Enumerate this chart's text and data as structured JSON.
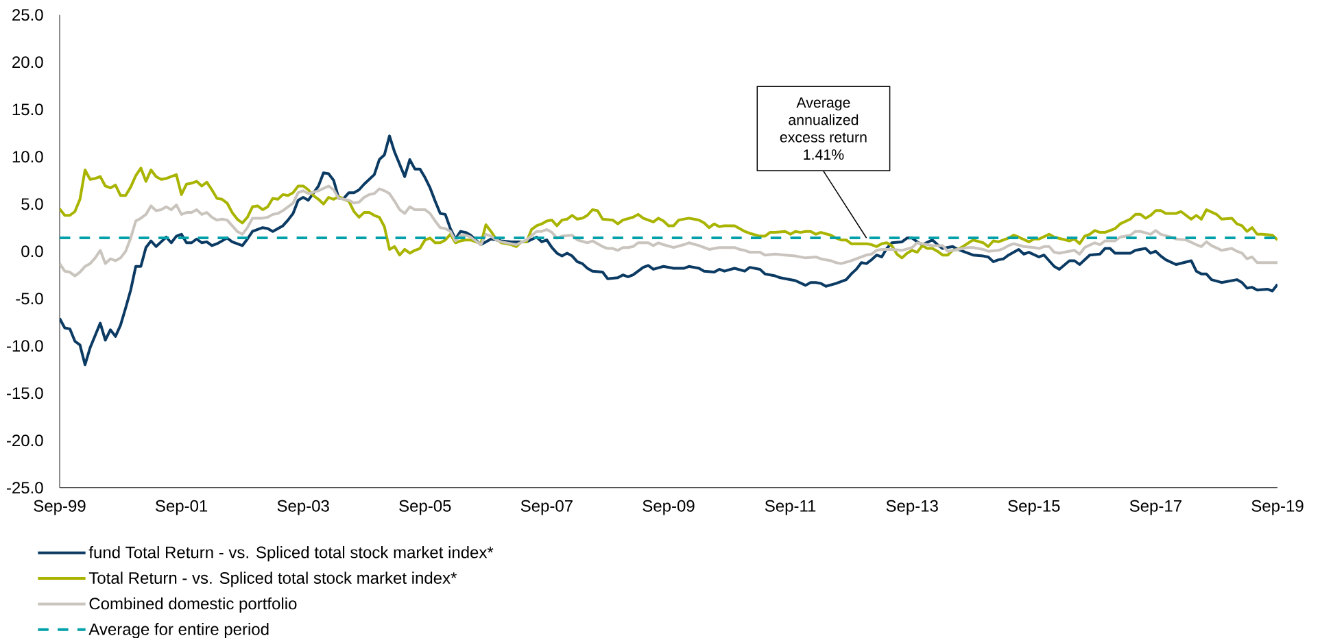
{
  "chart_data": {
    "type": "line",
    "xlim": [
      "1999-09",
      "2019-09"
    ],
    "ylim": [
      -25,
      25
    ],
    "xticks": [
      {
        "value": "1999-09",
        "label": "Sep-99"
      },
      {
        "value": "2001-09",
        "label": "Sep-01"
      },
      {
        "value": "2003-09",
        "label": "Sep-03"
      },
      {
        "value": "2005-09",
        "label": "Sep-05"
      },
      {
        "value": "2007-09",
        "label": "Sep-07"
      },
      {
        "value": "2009-09",
        "label": "Sep-09"
      },
      {
        "value": "2011-09",
        "label": "Sep-11"
      },
      {
        "value": "2013-09",
        "label": "Sep-13"
      },
      {
        "value": "2015-09",
        "label": "Sep-15"
      },
      {
        "value": "2017-09",
        "label": "Sep-17"
      },
      {
        "value": "2019-09",
        "label": "Sep-19"
      }
    ],
    "yticks": [
      {
        "value": -25,
        "label": "-25.0"
      },
      {
        "value": -20,
        "label": "-20.0"
      },
      {
        "value": -15,
        "label": "-15.0"
      },
      {
        "value": -10,
        "label": "-10.0"
      },
      {
        "value": -5,
        "label": "-5.0"
      },
      {
        "value": 0,
        "label": "0.0"
      },
      {
        "value": 5,
        "label": "5.0"
      },
      {
        "value": 10,
        "label": "10.0"
      },
      {
        "value": 15,
        "label": "15.0"
      },
      {
        "value": 20,
        "label": "20.0"
      },
      {
        "value": 25,
        "label": "25.0"
      }
    ],
    "legend": "bottom left",
    "series": [
      {
        "name": "fund Total Return - vs. Spliced total stock market index*",
        "color": "#0b3a63",
        "x": [
          "1999-09",
          "1999-10",
          "1999-11",
          "1999-12",
          "2000-01",
          "2000-02",
          "2000-03",
          "2000-05",
          "2000-06",
          "2000-07",
          "2000-08",
          "2000-09",
          "2000-10",
          "2000-11",
          "2000-12",
          "2001-01",
          "2001-02",
          "2001-03",
          "2001-04",
          "2001-05",
          "2001-06",
          "2001-07",
          "2001-08",
          "2001-09",
          "2001-10",
          "2001-11",
          "2001-12",
          "2002-01",
          "2002-02",
          "2002-03",
          "2002-04",
          "2002-06",
          "2002-07",
          "2002-09",
          "2002-10",
          "2002-11",
          "2003-01",
          "2003-02",
          "2003-03",
          "2003-05",
          "2003-06",
          "2003-07",
          "2003-08",
          "2003-09",
          "2003-10",
          "2003-12",
          "2004-01",
          "2004-02",
          "2004-03",
          "2004-04",
          "2004-05",
          "2004-06",
          "2004-07",
          "2004-08",
          "2004-09",
          "2004-11",
          "2004-12",
          "2005-01",
          "2005-02",
          "2005-03",
          "2005-05",
          "2005-06",
          "2005-07",
          "2005-08",
          "2005-09",
          "2005-10",
          "2005-11",
          "2005-12",
          "2006-01",
          "2006-02",
          "2006-03",
          "2006-04",
          "2006-05",
          "2006-06",
          "2006-07",
          "2006-08",
          "2006-09",
          "2006-10",
          "2006-12",
          "2007-02",
          "2007-05",
          "2007-07",
          "2007-08",
          "2007-09",
          "2007-10",
          "2007-11",
          "2007-12",
          "2008-01",
          "2008-02",
          "2008-03",
          "2008-04",
          "2008-05",
          "2008-06",
          "2008-08",
          "2008-09",
          "2008-11",
          "2008-12",
          "2009-01",
          "2009-02",
          "2009-04",
          "2009-05",
          "2009-06",
          "2009-08",
          "2009-10",
          "2009-12",
          "2010-01",
          "2010-03",
          "2010-04",
          "2010-06",
          "2010-07",
          "2010-08",
          "2010-10",
          "2010-12",
          "2011-01",
          "2011-03",
          "2011-04",
          "2011-06",
          "2011-07",
          "2011-10",
          "2011-12",
          "2012-01",
          "2012-02",
          "2012-03",
          "2012-04",
          "2012-06",
          "2012-08",
          "2012-09",
          "2012-10",
          "2012-11",
          "2012-12",
          "2013-01",
          "2013-02",
          "2013-03",
          "2013-04",
          "2013-05",
          "2013-07",
          "2013-08",
          "2013-09",
          "2013-10",
          "2013-11",
          "2014-01",
          "2014-02",
          "2014-03",
          "2014-05",
          "2014-06",
          "2014-08",
          "2014-09",
          "2014-11",
          "2014-12",
          "2015-01",
          "2015-02",
          "2015-03",
          "2015-04",
          "2015-06",
          "2015-07",
          "2015-08",
          "2015-10",
          "2015-11",
          "2016-01",
          "2016-02",
          "2016-04",
          "2016-05",
          "2016-06",
          "2016-08",
          "2016-10",
          "2016-11",
          "2016-12",
          "2017-01",
          "2017-04",
          "2017-05",
          "2017-07",
          "2017-08",
          "2017-09",
          "2017-10",
          "2017-11",
          "2018-01",
          "2018-04",
          "2018-05",
          "2018-06",
          "2018-07",
          "2018-08",
          "2018-10",
          "2019-01",
          "2019-02",
          "2019-03",
          "2019-04",
          "2019-05",
          "2019-07",
          "2019-08",
          "2019-09"
        ],
        "values": [
          -7.1,
          -8.1,
          -8.2,
          -9.5,
          -9.9,
          -12.0,
          -10.2,
          -7.6,
          -9.4,
          -8.3,
          -9.0,
          -7.8,
          -6.0,
          -4.1,
          -1.6,
          -1.6,
          0.4,
          1.1,
          0.5,
          1.0,
          1.5,
          0.9,
          1.6,
          1.8,
          0.9,
          0.9,
          1.3,
          0.9,
          1.0,
          0.6,
          0.8,
          1.4,
          1.0,
          0.6,
          1.3,
          2.1,
          2.5,
          2.4,
          2.1,
          2.7,
          3.3,
          4.0,
          5.4,
          5.7,
          5.4,
          6.9,
          8.3,
          8.2,
          7.5,
          5.6,
          5.6,
          6.2,
          6.2,
          6.5,
          7.1,
          8.1,
          9.7,
          10.2,
          12.2,
          10.5,
          7.9,
          9.7,
          8.7,
          8.7,
          7.8,
          6.7,
          5.3,
          4.0,
          3.9,
          2.4,
          1.3,
          2.1,
          2.0,
          1.7,
          1.2,
          0.7,
          1.0,
          1.3,
          1.1,
          1.0,
          1.0,
          1.5,
          1.0,
          1.2,
          0.4,
          -0.2,
          -0.5,
          -0.2,
          -0.5,
          -1.1,
          -1.3,
          -1.8,
          -2.1,
          -2.2,
          -2.9,
          -2.8,
          -2.5,
          -2.7,
          -2.5,
          -1.7,
          -1.5,
          -1.9,
          -1.6,
          -1.8,
          -1.8,
          -1.6,
          -1.8,
          -2.1,
          -2.2,
          -1.9,
          -2.1,
          -1.8,
          -2.1,
          -1.7,
          -1.9,
          -2.4,
          -2.6,
          -2.8,
          -3.1,
          -3.6,
          -3.3,
          -3.3,
          -3.4,
          -3.7,
          -3.4,
          -3.0,
          -2.4,
          -1.9,
          -1.2,
          -1.3,
          -0.9,
          -0.4,
          -0.6,
          0.3,
          0.9,
          1.0,
          1.4,
          1.4,
          1.0,
          0.7,
          1.2,
          0.7,
          0.3,
          0.5,
          0.2,
          -0.2,
          -0.4,
          -0.5,
          -0.6,
          -1.1,
          -0.9,
          -0.8,
          -0.4,
          0.2,
          -0.3,
          -0.1,
          -0.6,
          -0.4,
          -1.6,
          -1.9,
          -1.0,
          -1.0,
          -1.4,
          -0.4,
          -0.3,
          0.3,
          0.3,
          -0.2,
          -0.2,
          0.1,
          0.3,
          -0.2,
          0.0,
          -0.5,
          -0.9,
          -1.4,
          -1.0,
          -2.1,
          -2.4,
          -2.4,
          -3.0,
          -3.3,
          -3.0,
          -3.3,
          -3.9,
          -3.8,
          -4.1,
          -4.0,
          -4.2,
          -3.5
        ]
      },
      {
        "name": "Total Return - vs. Spliced total stock market index*",
        "color": "#a8b400",
        "x": [
          "1999-09",
          "1999-10",
          "1999-11",
          "1999-12",
          "2000-01",
          "2000-02",
          "2000-03",
          "2000-04",
          "2000-05",
          "2000-06",
          "2000-07",
          "2000-08",
          "2000-09",
          "2000-10",
          "2000-11",
          "2000-12",
          "2001-01",
          "2001-02",
          "2001-03",
          "2001-04",
          "2001-05",
          "2001-06",
          "2001-07",
          "2001-08",
          "2001-09",
          "2001-10",
          "2001-11",
          "2001-12",
          "2002-01",
          "2002-02",
          "2002-03",
          "2002-04",
          "2002-05",
          "2002-06",
          "2002-07",
          "2002-08",
          "2002-09",
          "2002-10",
          "2002-11",
          "2002-12",
          "2003-01",
          "2003-02",
          "2003-03",
          "2003-04",
          "2003-05",
          "2003-06",
          "2003-07",
          "2003-08",
          "2003-09",
          "2003-10",
          "2003-11",
          "2003-12",
          "2004-01",
          "2004-02",
          "2004-03",
          "2004-04",
          "2004-05",
          "2004-06",
          "2004-07",
          "2004-08",
          "2004-09",
          "2004-10",
          "2004-11",
          "2004-12",
          "2005-01",
          "2005-02",
          "2005-03",
          "2005-04",
          "2005-05",
          "2005-06",
          "2005-07",
          "2005-08",
          "2005-09",
          "2005-10",
          "2005-11",
          "2005-12",
          "2006-01",
          "2006-02",
          "2006-03",
          "2006-04",
          "2006-05",
          "2006-06",
          "2006-07",
          "2006-08",
          "2006-09",
          "2006-10",
          "2006-11",
          "2006-12",
          "2007-01",
          "2007-02",
          "2007-03",
          "2007-04",
          "2007-05",
          "2007-06",
          "2007-07",
          "2007-08",
          "2007-09",
          "2007-10",
          "2007-11",
          "2007-12",
          "2008-01",
          "2008-02",
          "2008-03",
          "2008-04",
          "2008-05",
          "2008-06",
          "2008-07",
          "2008-08",
          "2008-10",
          "2008-11",
          "2008-12",
          "2009-02",
          "2009-03",
          "2009-04",
          "2009-05",
          "2009-06",
          "2009-07",
          "2009-08",
          "2009-09",
          "2009-10",
          "2009-11",
          "2010-01",
          "2010-03",
          "2010-04",
          "2010-05",
          "2010-06",
          "2010-07",
          "2010-08",
          "2010-10",
          "2010-11",
          "2010-12",
          "2011-01",
          "2011-03",
          "2011-04",
          "2011-05",
          "2011-06",
          "2011-08",
          "2011-09",
          "2011-10",
          "2011-11",
          "2011-12",
          "2012-01",
          "2012-02",
          "2012-03",
          "2012-05",
          "2012-06",
          "2012-07",
          "2012-08",
          "2012-09",
          "2012-10",
          "2012-12",
          "2013-01",
          "2013-02",
          "2013-03",
          "2013-04",
          "2013-05",
          "2013-06",
          "2013-07",
          "2013-08",
          "2013-09",
          "2013-10",
          "2013-11",
          "2013-12",
          "2014-01",
          "2014-02",
          "2014-03",
          "2014-04",
          "2014-05",
          "2014-06",
          "2014-07",
          "2014-09",
          "2014-11",
          "2014-12",
          "2015-01",
          "2015-02",
          "2015-04",
          "2015-05",
          "2015-06",
          "2015-08",
          "2015-09",
          "2015-10",
          "2015-12",
          "2016-01",
          "2016-04",
          "2016-05",
          "2016-06",
          "2016-07",
          "2016-08",
          "2016-09",
          "2016-10",
          "2016-11",
          "2017-01",
          "2017-02",
          "2017-04",
          "2017-05",
          "2017-06",
          "2017-07",
          "2017-08",
          "2017-09",
          "2017-10",
          "2017-11",
          "2018-01",
          "2018-02",
          "2018-04",
          "2018-05",
          "2018-06",
          "2018-07",
          "2018-09",
          "2018-10",
          "2018-12",
          "2019-01",
          "2019-02",
          "2019-03",
          "2019-04",
          "2019-05",
          "2019-06",
          "2019-08",
          "2019-09"
        ],
        "values": [
          4.5,
          3.8,
          3.8,
          4.2,
          5.5,
          8.6,
          7.6,
          7.7,
          7.9,
          6.9,
          6.7,
          7.0,
          5.9,
          5.9,
          6.8,
          8.0,
          8.8,
          7.4,
          8.6,
          7.9,
          7.6,
          7.7,
          7.9,
          8.1,
          6.0,
          7.1,
          7.2,
          7.4,
          6.9,
          7.3,
          6.5,
          5.6,
          5.5,
          5.1,
          4.1,
          3.4,
          3.0,
          3.6,
          4.7,
          4.8,
          4.4,
          4.7,
          5.6,
          5.5,
          6.0,
          5.9,
          6.2,
          6.9,
          6.9,
          6.5,
          5.9,
          5.5,
          5.0,
          5.7,
          5.5,
          5.8,
          5.5,
          5.3,
          4.2,
          3.6,
          4.1,
          4.1,
          3.8,
          3.6,
          2.6,
          0.2,
          0.5,
          -0.4,
          0.2,
          -0.2,
          0.1,
          0.3,
          1.2,
          1.4,
          0.9,
          0.9,
          1.2,
          1.8,
          0.9,
          1.1,
          1.2,
          1.2,
          1.0,
          0.8,
          2.8,
          2.1,
          1.3,
          0.9,
          0.8,
          0.7,
          0.5,
          1.0,
          1.0,
          2.3,
          2.7,
          2.9,
          3.2,
          3.3,
          2.7,
          3.3,
          3.4,
          3.8,
          3.4,
          3.5,
          3.8,
          4.4,
          4.3,
          3.4,
          3.3,
          2.9,
          3.3,
          3.6,
          3.9,
          3.5,
          3.3,
          3.1,
          3.5,
          3.2,
          2.7,
          2.7,
          3.3,
          3.5,
          3.3,
          3.0,
          2.5,
          2.9,
          2.6,
          2.7,
          2.7,
          2.4,
          2.1,
          1.9,
          1.6,
          1.6,
          2.0,
          2.0,
          2.1,
          1.8,
          2.1,
          2.0,
          2.1,
          2.1,
          1.8,
          2.0,
          1.7,
          1.4,
          1.2,
          1.2,
          0.8,
          0.8,
          0.8,
          0.7,
          0.5,
          0.8,
          0.9,
          0.6,
          -0.3,
          -0.7,
          -0.2,
          0.1,
          -0.1,
          0.6,
          0.3,
          0.3,
          0.0,
          -0.4,
          -0.4,
          0.1,
          0.2,
          0.5,
          1.2,
          0.9,
          0.5,
          1.1,
          1.0,
          1.4,
          1.7,
          1.5,
          1.0,
          1.3,
          1.3,
          1.8,
          1.5,
          1.1,
          1.3,
          0.8,
          1.6,
          1.8,
          2.2,
          2.0,
          2.0,
          2.4,
          2.9,
          3.4,
          3.9,
          3.9,
          3.5,
          3.8,
          4.3,
          4.3,
          4.0,
          4.0,
          4.2,
          3.4,
          3.8,
          3.4,
          4.4,
          3.9,
          3.4,
          3.5,
          2.9,
          2.7,
          2.1,
          2.5,
          1.8,
          1.8,
          1.7,
          1.2
        ]
      },
      {
        "name": "Combined domestic portfolio",
        "color": "#c9c4bd",
        "x": [
          "1999-09",
          "1999-10",
          "1999-11",
          "1999-12",
          "2000-01",
          "2000-02",
          "2000-03",
          "2000-04",
          "2000-05",
          "2000-06",
          "2000-07",
          "2000-08",
          "2000-09",
          "2000-10",
          "2000-11",
          "2000-12",
          "2001-01",
          "2001-02",
          "2001-03",
          "2001-04",
          "2001-05",
          "2001-06",
          "2001-07",
          "2001-08",
          "2001-09",
          "2001-10",
          "2001-11",
          "2001-12",
          "2002-01",
          "2002-02",
          "2002-03",
          "2002-04",
          "2002-05",
          "2002-06",
          "2002-07",
          "2002-08",
          "2002-09",
          "2002-10",
          "2002-11",
          "2002-12",
          "2003-01",
          "2003-02",
          "2003-03",
          "2003-04",
          "2003-05",
          "2003-06",
          "2003-07",
          "2003-08",
          "2003-09",
          "2003-10",
          "2003-12",
          "2004-02",
          "2004-03",
          "2004-04",
          "2004-05",
          "2004-06",
          "2004-07",
          "2004-08",
          "2004-09",
          "2004-10",
          "2004-11",
          "2004-12",
          "2005-01",
          "2005-02",
          "2005-03",
          "2005-04",
          "2005-05",
          "2005-06",
          "2005-07",
          "2005-09",
          "2005-10",
          "2005-11",
          "2005-12",
          "2006-01",
          "2006-02",
          "2006-03",
          "2006-04",
          "2006-05",
          "2006-06",
          "2006-07",
          "2006-08",
          "2006-09",
          "2006-10",
          "2006-11",
          "2006-12",
          "2007-02",
          "2007-03",
          "2007-05",
          "2007-07",
          "2007-08",
          "2007-09",
          "2007-10",
          "2007-11",
          "2007-12",
          "2008-02",
          "2008-03",
          "2008-05",
          "2008-06",
          "2008-08",
          "2008-09",
          "2008-10",
          "2008-11",
          "2008-12",
          "2009-01",
          "2009-02",
          "2009-03",
          "2009-05",
          "2009-06",
          "2009-07",
          "2009-08",
          "2009-10",
          "2009-12",
          "2010-01",
          "2010-03",
          "2010-05",
          "2010-07",
          "2010-10",
          "2010-11",
          "2010-12",
          "2011-01",
          "2011-03",
          "2011-04",
          "2011-06",
          "2011-08",
          "2011-10",
          "2011-12",
          "2012-02",
          "2012-03",
          "2012-05",
          "2012-06",
          "2012-07",
          "2012-09",
          "2012-10",
          "2012-12",
          "2013-01",
          "2013-02",
          "2013-03",
          "2013-05",
          "2013-07",
          "2013-09",
          "2013-10",
          "2013-12",
          "2014-01",
          "2014-03",
          "2014-04",
          "2014-06",
          "2014-08",
          "2014-09",
          "2014-11",
          "2014-12",
          "2015-02",
          "2015-03",
          "2015-04",
          "2015-05",
          "2015-07",
          "2015-09",
          "2015-10",
          "2015-11",
          "2015-12",
          "2016-01",
          "2016-02",
          "2016-03",
          "2016-05",
          "2016-06",
          "2016-07",
          "2016-09",
          "2016-10",
          "2016-11",
          "2017-01",
          "2017-02",
          "2017-04",
          "2017-05",
          "2017-06",
          "2017-08",
          "2017-09",
          "2017-10",
          "2017-12",
          "2018-01",
          "2018-03",
          "2018-05",
          "2018-06",
          "2018-07",
          "2018-08",
          "2018-10",
          "2018-12",
          "2019-01",
          "2019-02",
          "2019-03",
          "2019-04",
          "2019-05",
          "2019-07",
          "2019-09"
        ],
        "values": [
          -1.3,
          -2.1,
          -2.2,
          -2.6,
          -2.2,
          -1.6,
          -1.3,
          -0.7,
          0.1,
          -1.3,
          -0.8,
          -1.0,
          -0.7,
          0.0,
          1.4,
          3.2,
          3.5,
          3.9,
          4.8,
          4.3,
          4.4,
          4.7,
          4.4,
          4.9,
          3.9,
          4.1,
          4.1,
          4.4,
          3.9,
          4.1,
          3.6,
          3.3,
          3.4,
          3.3,
          2.7,
          2.1,
          1.8,
          2.5,
          3.5,
          3.5,
          3.5,
          3.6,
          3.9,
          4.0,
          4.3,
          4.7,
          5.1,
          6.2,
          6.4,
          6.1,
          6.4,
          6.9,
          6.5,
          5.6,
          5.5,
          5.4,
          5.1,
          5.2,
          5.7,
          6.0,
          6.1,
          6.6,
          6.4,
          6.1,
          5.3,
          4.4,
          4.0,
          4.7,
          4.4,
          4.4,
          4.0,
          3.2,
          2.5,
          2.4,
          2.1,
          1.1,
          1.7,
          1.7,
          1.5,
          1.1,
          0.7,
          1.8,
          1.6,
          1.2,
          1.0,
          0.8,
          0.7,
          1.2,
          2.1,
          2.1,
          2.3,
          2.0,
          1.4,
          1.6,
          1.7,
          1.2,
          0.9,
          1.1,
          0.5,
          0.3,
          0.3,
          0.1,
          0.4,
          0.4,
          0.5,
          0.9,
          0.9,
          0.6,
          0.9,
          0.7,
          0.4,
          0.7,
          0.9,
          0.6,
          0.2,
          0.4,
          0.4,
          0.2,
          0.1,
          -0.1,
          -0.1,
          -0.4,
          -0.3,
          -0.4,
          -0.5,
          -0.7,
          -0.6,
          -0.8,
          -1.0,
          -1.2,
          -1.3,
          -1.0,
          -0.8,
          -0.4,
          -0.3,
          0.1,
          0.2,
          0.2,
          0.1,
          0.4,
          0.9,
          0.7,
          0.6,
          0.6,
          0.0,
          0.2,
          0.4,
          0.4,
          0.2,
          0.0,
          0.1,
          0.3,
          0.6,
          0.8,
          0.5,
          0.4,
          0.3,
          0.5,
          0.5,
          -0.1,
          -0.2,
          -0.1,
          0.1,
          -0.3,
          0.4,
          0.9,
          0.7,
          1.1,
          1.1,
          1.5,
          1.7,
          2.1,
          2.1,
          1.8,
          2.2,
          1.8,
          1.5,
          1.3,
          1.2,
          0.7,
          0.5,
          1.0,
          0.6,
          0.1,
          0.3,
          0.0,
          -0.2,
          -0.8,
          -0.6,
          -1.2,
          -1.2,
          -1.2
        ]
      }
    ],
    "ref_lines": [
      {
        "axis": "y",
        "value": 1.41,
        "label": "Average for entire period",
        "color": "#00a0aa",
        "line_style": "dashed"
      }
    ],
    "annotations": [
      {
        "text": "Average annualized excess return 1.41%",
        "x": "2012-12",
        "y": 1.41
      }
    ]
  }
}
